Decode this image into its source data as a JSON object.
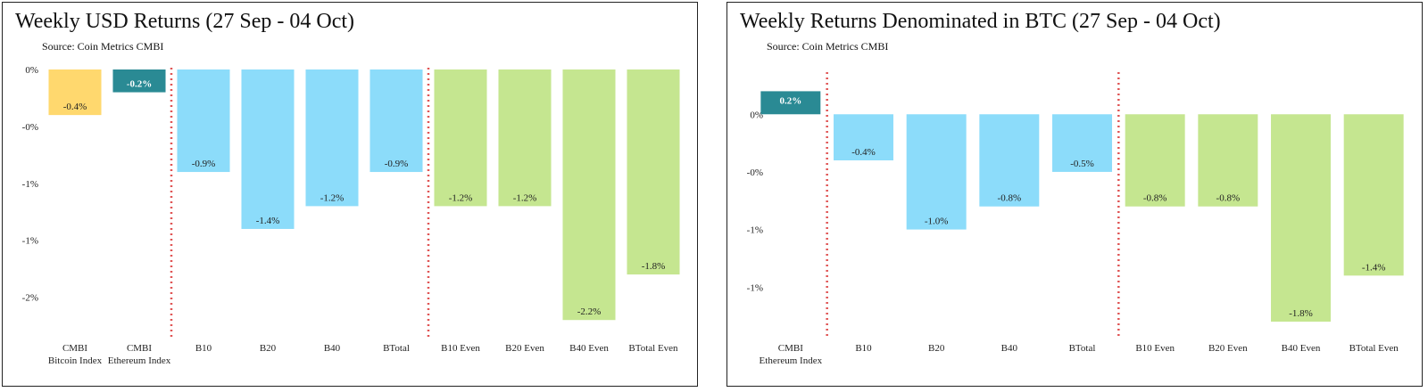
{
  "colors": {
    "bitcoin_index": "#FFD86E",
    "ethereum_index": "#2A8A94",
    "bitwise_cap": "#8CDCFA",
    "bitwise_even": "#C5E690",
    "separator": "#E05555",
    "axis_text": "#222222"
  },
  "chart_data": [
    {
      "type": "bar",
      "title": "Weekly USD Returns (27 Sep - 04 Oct)",
      "source": "Source: Coin Metrics CMBI",
      "xlabel": "",
      "ylabel": "",
      "categories": [
        "CMBI Bitcoin Index",
        "CMBI Ethereum Index",
        "B10",
        "B20",
        "B40",
        "BTotal",
        "B10 Even",
        "B20 Even",
        "B40 Even",
        "BTotal Even"
      ],
      "category_lines": [
        [
          "CMBI",
          "Bitcoin Index"
        ],
        [
          "CMBI",
          "Ethereum Index"
        ],
        [
          "B10"
        ],
        [
          "B20"
        ],
        [
          "B40"
        ],
        [
          "BTotal"
        ],
        [
          "B10 Even"
        ],
        [
          "B20 Even"
        ],
        [
          "B40 Even"
        ],
        [
          "BTotal Even"
        ]
      ],
      "values": [
        -0.4,
        -0.2,
        -0.9,
        -1.4,
        -1.2,
        -0.9,
        -1.2,
        -1.2,
        -2.2,
        -1.8
      ],
      "data_labels": [
        "-0.4%",
        "-0.2%",
        "-0.9%",
        "-1.4%",
        "-1.2%",
        "-0.9%",
        "-1.2%",
        "-1.2%",
        "-2.2%",
        "-1.8%"
      ],
      "color_groups": [
        "bitcoin_index",
        "ethereum_index",
        "bitwise_cap",
        "bitwise_cap",
        "bitwise_cap",
        "bitwise_cap",
        "bitwise_even",
        "bitwise_even",
        "bitwise_even",
        "bitwise_even"
      ],
      "y_ticks": [
        0,
        -0.5,
        -1,
        -1.5,
        -2
      ],
      "y_tick_labels": [
        "0%",
        "-0%",
        "-1%",
        "-1%",
        "-2%"
      ],
      "ylim": [
        -2.3,
        0
      ],
      "separators_after": [
        1,
        5
      ],
      "grid": false,
      "legend": "none"
    },
    {
      "type": "bar",
      "title": "Weekly Returns Denominated in BTC (27 Sep - 04 Oct)",
      "source": "Source: Coin Metrics CMBI",
      "xlabel": "",
      "ylabel": "",
      "categories": [
        "CMBI Ethereum Index",
        "B10",
        "B20",
        "B40",
        "BTotal",
        "B10 Even",
        "B20 Even",
        "B40 Even",
        "BTotal Even"
      ],
      "category_lines": [
        [
          "CMBI",
          "Ethereum Index"
        ],
        [
          "B10"
        ],
        [
          "B20"
        ],
        [
          "B40"
        ],
        [
          "BTotal"
        ],
        [
          "B10 Even"
        ],
        [
          "B20 Even"
        ],
        [
          "B40 Even"
        ],
        [
          "BTotal Even"
        ]
      ],
      "values": [
        0.2,
        -0.4,
        -1.0,
        -0.8,
        -0.5,
        -0.8,
        -0.8,
        -1.8,
        -1.4
      ],
      "data_labels": [
        "0.2%",
        "-0.4%",
        "-1.0%",
        "-0.8%",
        "-0.5%",
        "-0.8%",
        "-0.8%",
        "-1.8%",
        "-1.4%"
      ],
      "color_groups": [
        "ethereum_index",
        "bitwise_cap",
        "bitwise_cap",
        "bitwise_cap",
        "bitwise_cap",
        "bitwise_even",
        "bitwise_even",
        "bitwise_even",
        "bitwise_even"
      ],
      "y_ticks": [
        0,
        -0.5,
        -1,
        -1.5
      ],
      "y_tick_labels": [
        "0%",
        "-0%",
        "-1%",
        "-1%"
      ],
      "ylim": [
        -1.9,
        0.35
      ],
      "separators_after": [
        0,
        4
      ],
      "grid": false,
      "legend": "none"
    }
  ]
}
